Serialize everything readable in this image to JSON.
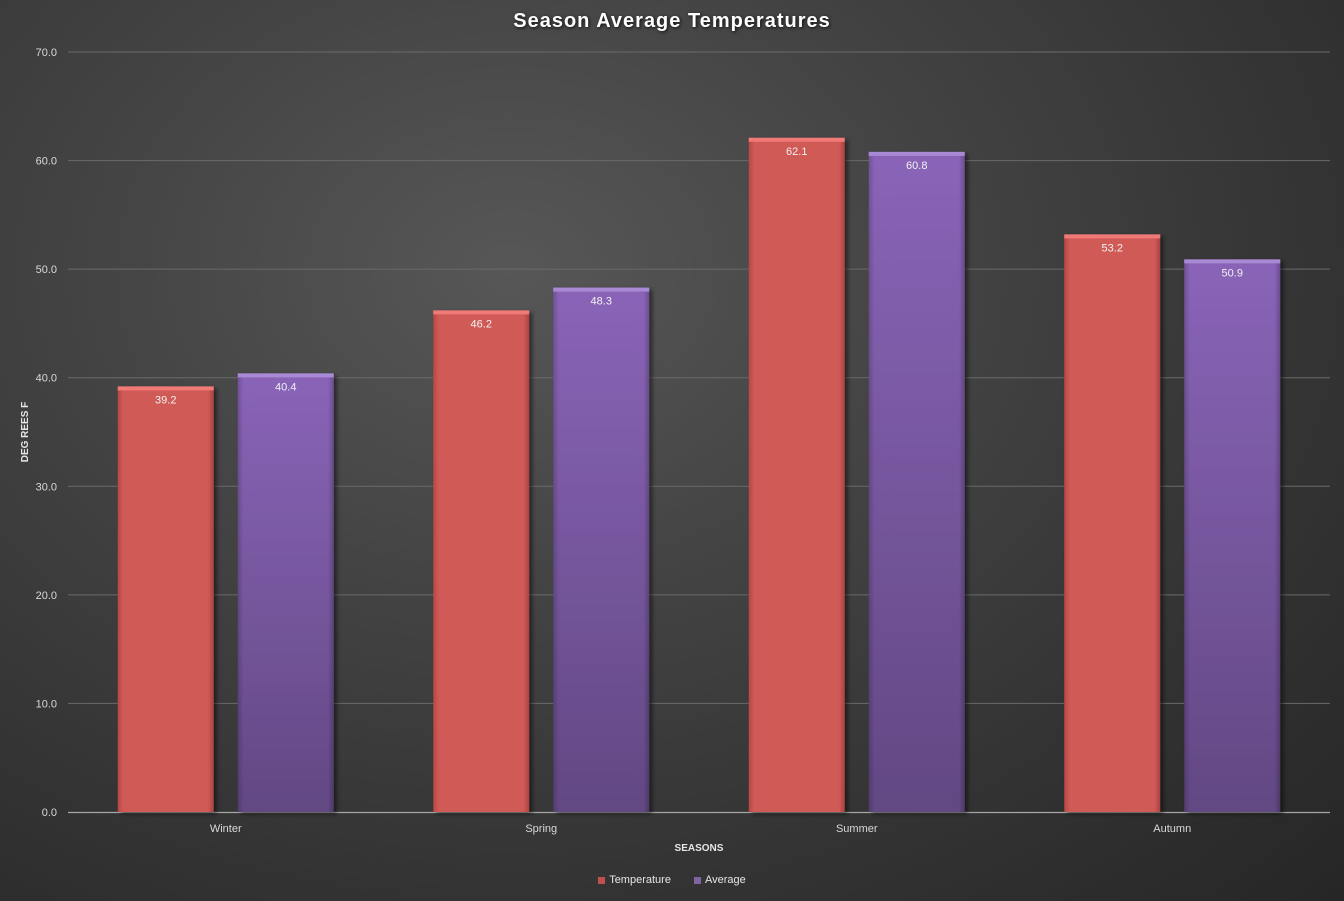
{
  "chart_data": {
    "type": "bar",
    "title": "Season Average Temperatures",
    "xlabel": "SEASONS",
    "ylabel": "DEG REES F",
    "categories": [
      "Winter",
      "Spring",
      "Summer",
      "Autumn"
    ],
    "series": [
      {
        "name": "Temperature",
        "values": [
          39.2,
          46.2,
          62.1,
          53.2
        ],
        "color": "#c0504d"
      },
      {
        "name": "Average",
        "values": [
          40.4,
          48.3,
          60.8,
          50.9
        ],
        "color": "#8064a2"
      }
    ],
    "data_labels": [
      [
        "39.2",
        "46.2",
        "62.1",
        "53.2"
      ],
      [
        "40.4",
        "48.3",
        "60.8",
        "50.9"
      ]
    ],
    "ylim": [
      0,
      70
    ],
    "yticks": [
      "0.0",
      "10.0",
      "20.0",
      "30.0",
      "40.0",
      "50.0",
      "60.0",
      "70.0"
    ],
    "grid": true,
    "legend_position": "bottom"
  }
}
